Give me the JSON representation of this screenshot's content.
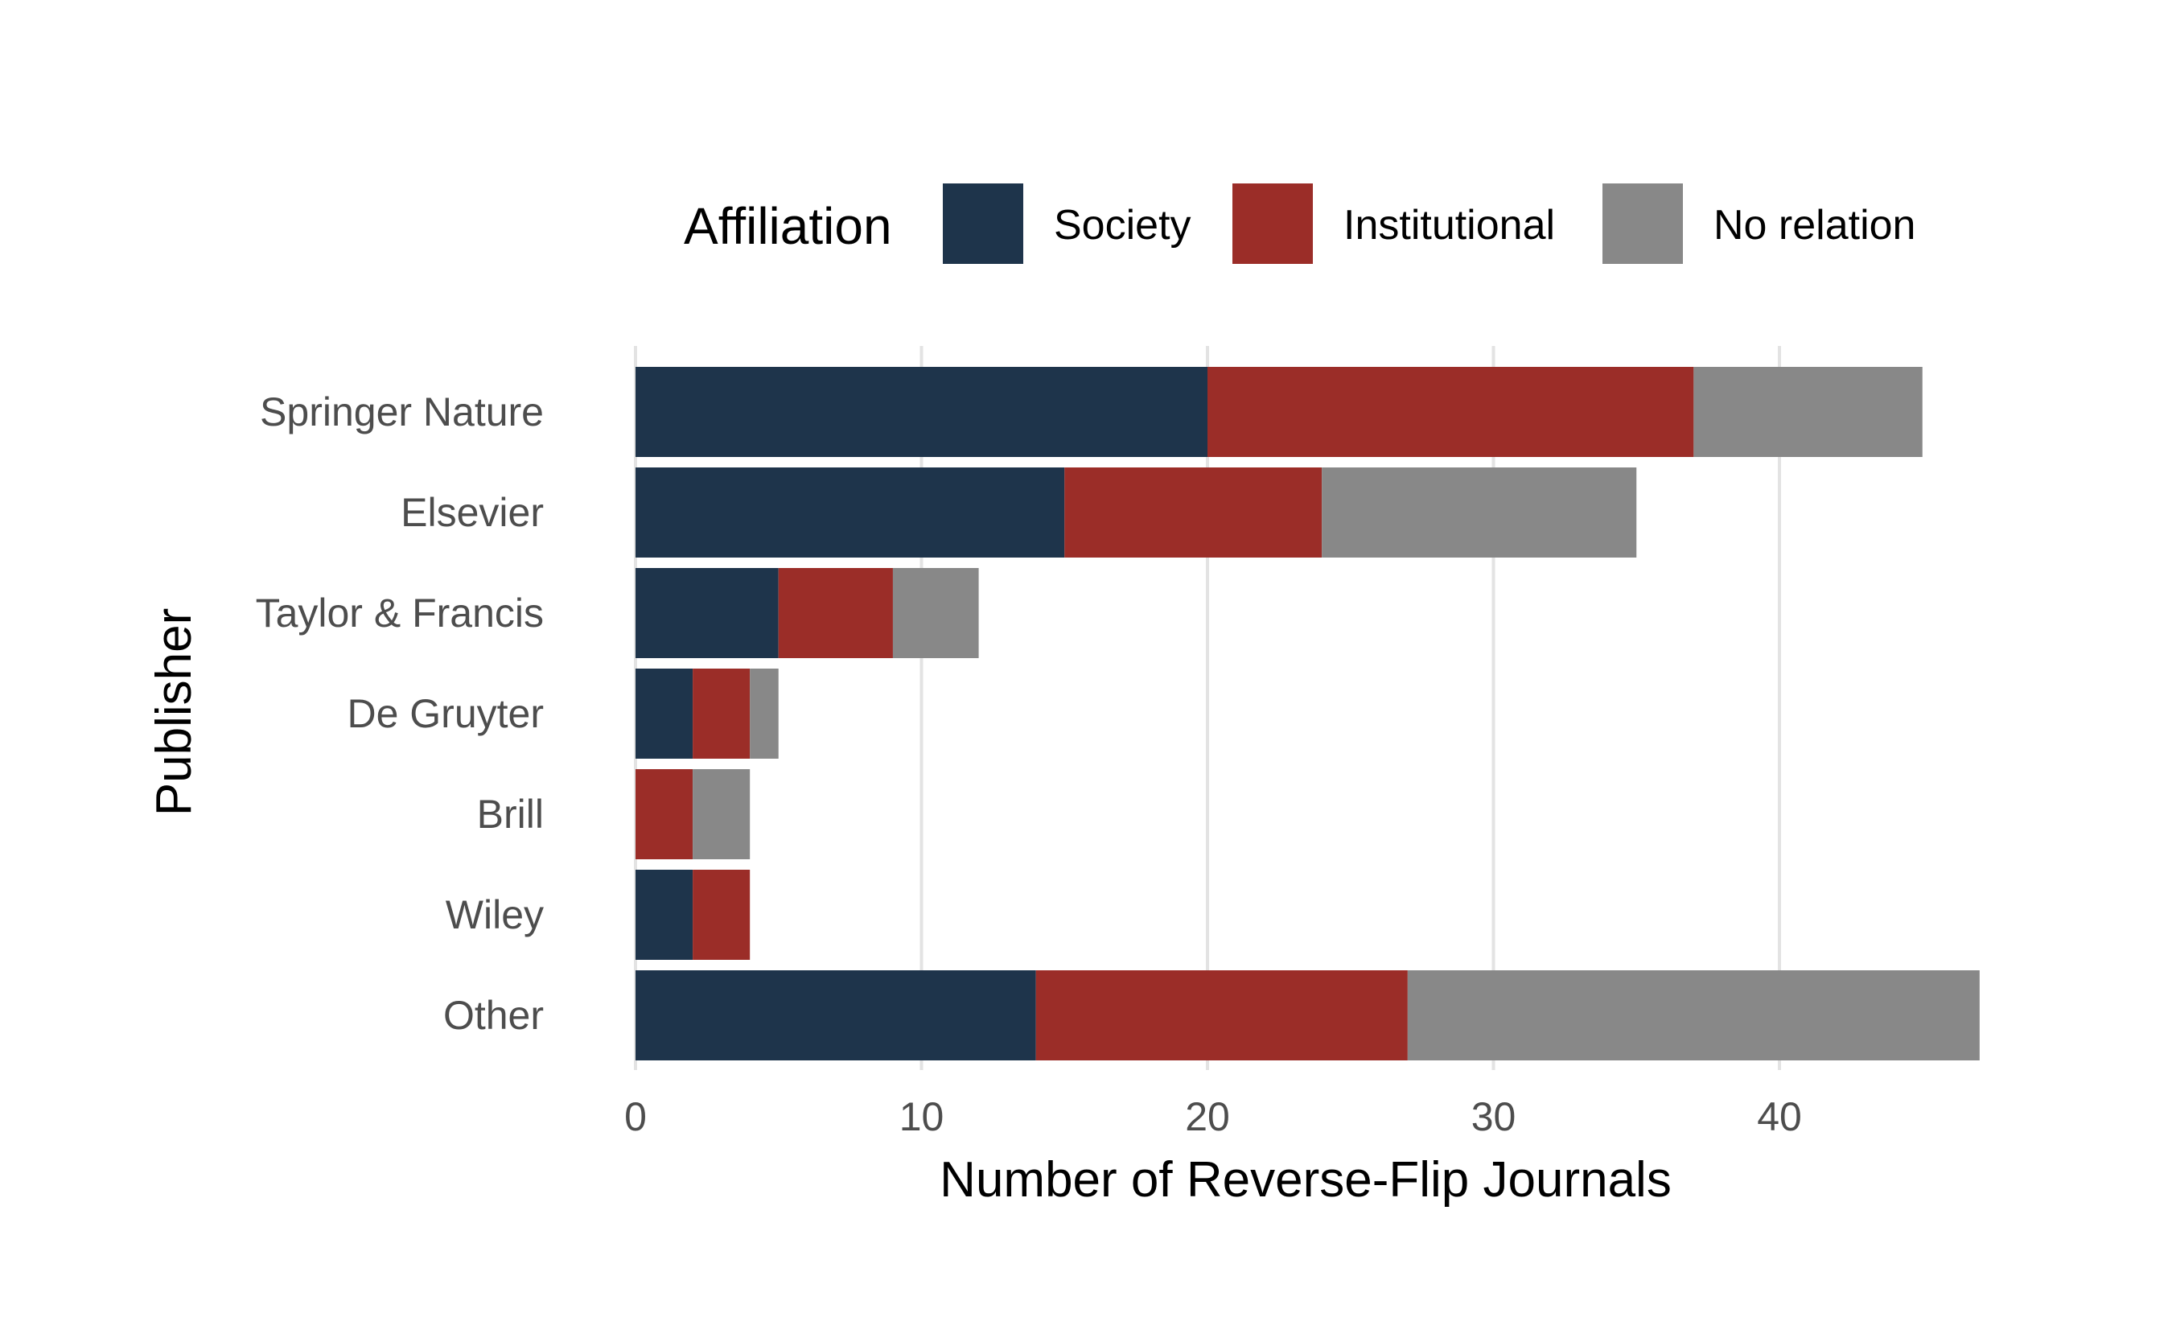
{
  "chart_data": {
    "type": "bar",
    "orientation": "horizontal",
    "stacked": true,
    "categories": [
      "Springer Nature",
      "Elsevier",
      "Taylor & Francis",
      "De Gruyter",
      "Brill",
      "Wiley",
      "Other"
    ],
    "series": [
      {
        "name": "Society",
        "color": "#1e344b",
        "values": [
          20,
          15,
          5,
          2,
          0,
          2,
          14
        ]
      },
      {
        "name": "Institutional",
        "color": "#9b2d28",
        "values": [
          17,
          9,
          4,
          2,
          2,
          2,
          13
        ]
      },
      {
        "name": "No relation",
        "color": "#888888",
        "values": [
          8,
          11,
          3,
          1,
          2,
          0,
          20
        ]
      }
    ],
    "xlabel": "Number of Reverse-Flip Journals",
    "ylabel": "Publisher",
    "xlim": [
      0,
      47
    ],
    "xticks": [
      "0",
      "10",
      "20",
      "30",
      "40"
    ],
    "grid": "vertical major gridlines",
    "legend": {
      "title": "Affiliation",
      "placement": "top"
    }
  }
}
